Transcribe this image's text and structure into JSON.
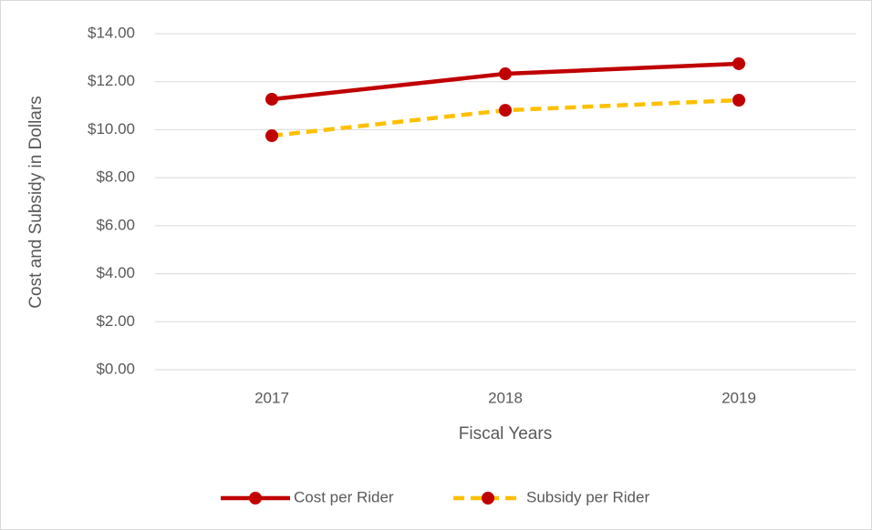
{
  "chart_data": {
    "type": "line",
    "y_label": "Cost and Subsidy in Dollars",
    "x_label": "Fiscal Years",
    "categories": [
      "2017",
      "2018",
      "2019"
    ],
    "series": [
      {
        "name": "Cost per Rider",
        "color": "#c00000",
        "marker_color": "#c00000",
        "line_style": "solid",
        "values": [
          11.27,
          12.33,
          12.75
        ]
      },
      {
        "name": "Subsidy per Rider",
        "color": "#ffc000",
        "marker_color": "#c00000",
        "line_style": "dashed",
        "values": [
          9.75,
          10.81,
          11.23
        ]
      }
    ],
    "ylim": [
      0,
      14
    ],
    "yticks": [
      {
        "value": 0,
        "label": "$0.00"
      },
      {
        "value": 2,
        "label": "$2.00"
      },
      {
        "value": 4,
        "label": "$4.00"
      },
      {
        "value": 6,
        "label": "$6.00"
      },
      {
        "value": 8,
        "label": "$8.00"
      },
      {
        "value": 10,
        "label": "$10.00"
      },
      {
        "value": 12,
        "label": "$12.00"
      },
      {
        "value": 14,
        "label": "$14.00"
      }
    ],
    "grid": true,
    "legend": "bottom"
  }
}
